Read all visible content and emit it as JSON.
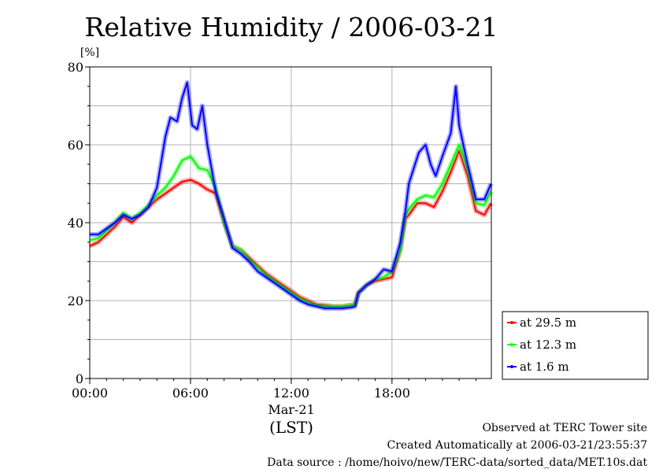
{
  "chart_data": {
    "type": "line",
    "title": "Relative Humidity / 2006-03-21",
    "ylabel": "[%]",
    "xlabel": "(LST)",
    "x_unit": "hour",
    "date_label": "Mar-21",
    "xlim": [
      0,
      23.917
    ],
    "ylim": [
      0,
      80
    ],
    "y_ticks": [
      0,
      20,
      40,
      60,
      80
    ],
    "x_ticks": [
      {
        "x": 0,
        "label": "00:00"
      },
      {
        "x": 6,
        "label": "06:00"
      },
      {
        "x": 12,
        "label": "12:00"
      },
      {
        "x": 18,
        "label": "18:00"
      }
    ],
    "grid": true,
    "legend_position": "outside-right",
    "series": [
      {
        "name": "at 29.5 m",
        "color": "#ff0000",
        "x": [
          0,
          0.5,
          1,
          1.5,
          2,
          2.5,
          3,
          3.5,
          4,
          4.5,
          5,
          5.5,
          6,
          6.5,
          7,
          7.5,
          8,
          8.5,
          9,
          9.5,
          10,
          10.5,
          11,
          11.5,
          12,
          12.5,
          13,
          13.5,
          14,
          14.5,
          15,
          15.5,
          15.8,
          16,
          16.5,
          17,
          17.5,
          18,
          18.5,
          18.8,
          19,
          19.5,
          20,
          20.5,
          21,
          21.5,
          22,
          22.5,
          23,
          23.5,
          23.9
        ],
        "values": [
          34,
          35,
          37,
          39,
          41.5,
          40,
          42,
          44,
          46,
          47.5,
          49,
          50.5,
          51,
          50,
          48.5,
          47.5,
          40,
          34,
          33,
          31,
          29,
          27,
          25.5,
          24,
          22.5,
          21,
          20,
          19,
          18.8,
          18.5,
          18.5,
          18.8,
          19,
          22,
          24,
          25,
          25.5,
          26,
          33,
          41,
          42,
          45,
          45,
          44,
          48,
          53,
          58.5,
          52,
          43,
          42,
          45
        ]
      },
      {
        "name": "at 12.3 m",
        "color": "#00ff00",
        "x": [
          0,
          0.5,
          1,
          1.5,
          2,
          2.5,
          3,
          3.5,
          4,
          4.5,
          5,
          5.5,
          6,
          6.5,
          7,
          7.5,
          8,
          8.5,
          9,
          9.5,
          10,
          10.5,
          11,
          11.5,
          12,
          12.5,
          13,
          13.5,
          14,
          14.5,
          15,
          15.5,
          15.8,
          16,
          16.5,
          17,
          17.5,
          18,
          18.5,
          18.8,
          19,
          19.5,
          20,
          20.5,
          21,
          21.5,
          22,
          22.5,
          23,
          23.5,
          23.9
        ],
        "values": [
          35.5,
          36,
          38,
          40,
          42.5,
          41,
          42.5,
          44.5,
          47,
          49,
          52,
          56,
          57,
          54,
          53.5,
          49,
          40,
          34,
          33,
          30.5,
          28.5,
          26.5,
          25,
          23.5,
          22,
          20.5,
          19.5,
          18.8,
          18.5,
          18.5,
          18.5,
          18.8,
          19,
          22,
          24,
          25.5,
          26,
          27.5,
          33,
          42,
          43.5,
          46,
          47,
          46.5,
          50,
          55,
          60,
          54,
          45,
          44.5,
          48
        ]
      },
      {
        "name": "at 1.6 m",
        "color": "#0000ff",
        "x": [
          0,
          0.5,
          1,
          1.5,
          2,
          2.5,
          3,
          3.5,
          4,
          4.5,
          4.8,
          5.2,
          5.5,
          5.8,
          6.1,
          6.4,
          6.7,
          7,
          7.5,
          8,
          8.5,
          9,
          9.5,
          10,
          10.5,
          11,
          11.5,
          12,
          12.5,
          13,
          13.5,
          14,
          14.5,
          15,
          15.5,
          15.8,
          16,
          16.5,
          17,
          17.5,
          18,
          18.5,
          18.8,
          19,
          19.3,
          19.6,
          20,
          20.3,
          20.6,
          21,
          21.5,
          21.8,
          22,
          22.5,
          23,
          23.5,
          23.9
        ],
        "values": [
          37,
          37,
          38.5,
          40,
          42,
          41,
          42,
          44,
          49,
          62,
          67,
          66,
          72,
          76,
          65,
          64,
          70,
          60,
          48,
          41,
          33.5,
          32,
          30,
          27.5,
          26,
          24.5,
          23,
          21.5,
          20,
          19,
          18.5,
          18,
          18,
          18,
          18.2,
          18.5,
          22,
          24,
          25.5,
          28,
          27.5,
          35,
          43,
          50,
          54,
          58,
          60,
          55,
          52,
          57,
          63,
          75,
          65,
          55,
          46,
          46,
          50
        ]
      }
    ]
  },
  "footer": {
    "line1": "Observed at TERC Tower site",
    "line2": "Created Automatically at 2006-03-21/23:55:37",
    "line3": "Data source : /home/hoivo/new/TERC-data/sorted_data/MET.10s.dat"
  }
}
